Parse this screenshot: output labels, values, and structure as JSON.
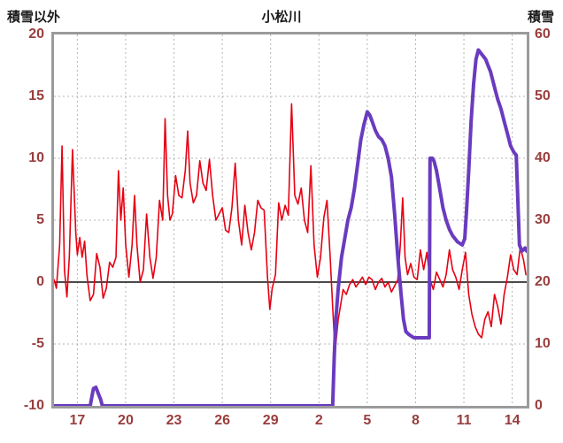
{
  "chart_data": {
    "type": "line",
    "title": "小松川",
    "grid": true,
    "legend": "none",
    "colors": {
      "grid": "#b4b4b4",
      "zero_line": "#4a4a4a",
      "frame": "#9b9b9b",
      "tick_text": "#993d3d",
      "header_text": "#1a1a1a",
      "background": "#ffffff"
    },
    "left_axis": {
      "label": "積雪以外",
      "min": -10,
      "max": 20,
      "ticks": [
        20,
        15,
        10,
        5,
        0,
        -5,
        -10
      ]
    },
    "right_axis": {
      "label": "積雪",
      "min": 0,
      "max": 60,
      "ticks": [
        60,
        50,
        40,
        30,
        20,
        10,
        0
      ]
    },
    "x_axis": {
      "min": 15.55,
      "max": 44.9,
      "tick_positions": [
        17,
        20,
        23,
        26,
        29,
        32,
        35,
        38,
        41,
        44
      ],
      "tick_labels": [
        "17",
        "20",
        "23",
        "26",
        "29",
        "2",
        "5",
        "8",
        "11",
        "14"
      ]
    },
    "series": [
      {
        "key": "temperature-line",
        "name": "積雪以外",
        "axis": "left",
        "color": "#e60012",
        "width": 1.6,
        "points": [
          [
            15.55,
            0.2
          ],
          [
            15.7,
            -0.5
          ],
          [
            15.9,
            3.0
          ],
          [
            16.05,
            11.0
          ],
          [
            16.2,
            1.0
          ],
          [
            16.35,
            -1.2
          ],
          [
            16.5,
            2.0
          ],
          [
            16.7,
            10.7
          ],
          [
            16.9,
            4.0
          ],
          [
            17.0,
            2.2
          ],
          [
            17.15,
            3.6
          ],
          [
            17.3,
            2.0
          ],
          [
            17.45,
            3.3
          ],
          [
            17.6,
            0.5
          ],
          [
            17.8,
            -1.5
          ],
          [
            18.0,
            -1.0
          ],
          [
            18.2,
            2.3
          ],
          [
            18.4,
            1.2
          ],
          [
            18.6,
            -1.3
          ],
          [
            18.8,
            -0.5
          ],
          [
            19.0,
            1.6
          ],
          [
            19.2,
            1.2
          ],
          [
            19.4,
            2.0
          ],
          [
            19.55,
            9.0
          ],
          [
            19.7,
            5.0
          ],
          [
            19.85,
            7.6
          ],
          [
            20.0,
            3.0
          ],
          [
            20.2,
            0.4
          ],
          [
            20.4,
            3.0
          ],
          [
            20.55,
            7.0
          ],
          [
            20.7,
            3.0
          ],
          [
            20.9,
            0.0
          ],
          [
            21.1,
            1.0
          ],
          [
            21.3,
            5.5
          ],
          [
            21.5,
            2.0
          ],
          [
            21.7,
            0.3
          ],
          [
            21.9,
            2.0
          ],
          [
            22.1,
            6.6
          ],
          [
            22.3,
            5.0
          ],
          [
            22.45,
            13.2
          ],
          [
            22.6,
            7.0
          ],
          [
            22.75,
            5.0
          ],
          [
            22.9,
            5.5
          ],
          [
            23.1,
            8.6
          ],
          [
            23.3,
            7.0
          ],
          [
            23.5,
            6.8
          ],
          [
            23.7,
            9.0
          ],
          [
            23.85,
            12.2
          ],
          [
            24.0,
            8.0
          ],
          [
            24.2,
            6.4
          ],
          [
            24.4,
            7.0
          ],
          [
            24.6,
            9.8
          ],
          [
            24.8,
            8.0
          ],
          [
            25.0,
            7.4
          ],
          [
            25.2,
            9.9
          ],
          [
            25.4,
            7.0
          ],
          [
            25.6,
            5.0
          ],
          [
            25.8,
            5.5
          ],
          [
            26.0,
            6.0
          ],
          [
            26.2,
            4.2
          ],
          [
            26.4,
            4.0
          ],
          [
            26.6,
            6.0
          ],
          [
            26.8,
            9.6
          ],
          [
            27.0,
            5.0
          ],
          [
            27.2,
            3.0
          ],
          [
            27.4,
            6.2
          ],
          [
            27.6,
            4.0
          ],
          [
            27.8,
            2.6
          ],
          [
            28.0,
            4.0
          ],
          [
            28.2,
            6.6
          ],
          [
            28.4,
            6.0
          ],
          [
            28.6,
            5.8
          ],
          [
            28.8,
            0.5
          ],
          [
            28.95,
            -2.2
          ],
          [
            29.1,
            -0.5
          ],
          [
            29.3,
            0.6
          ],
          [
            29.5,
            6.4
          ],
          [
            29.7,
            5.0
          ],
          [
            29.9,
            6.2
          ],
          [
            30.1,
            5.4
          ],
          [
            30.3,
            14.4
          ],
          [
            30.5,
            7.0
          ],
          [
            30.7,
            6.3
          ],
          [
            30.9,
            7.6
          ],
          [
            31.1,
            5.0
          ],
          [
            31.3,
            4.0
          ],
          [
            31.5,
            9.4
          ],
          [
            31.7,
            3.0
          ],
          [
            31.9,
            0.4
          ],
          [
            32.1,
            2.0
          ],
          [
            32.3,
            5.2
          ],
          [
            32.5,
            6.6
          ],
          [
            32.7,
            2.0
          ],
          [
            32.85,
            -2.0
          ],
          [
            33.0,
            -5.6
          ],
          [
            33.2,
            -3.0
          ],
          [
            33.35,
            -1.8
          ],
          [
            33.5,
            -0.6
          ],
          [
            33.7,
            -1.0
          ],
          [
            33.9,
            -0.2
          ],
          [
            34.1,
            0.2
          ],
          [
            34.3,
            -0.4
          ],
          [
            34.5,
            0.0
          ],
          [
            34.7,
            0.4
          ],
          [
            34.9,
            -0.2
          ],
          [
            35.1,
            0.4
          ],
          [
            35.3,
            0.2
          ],
          [
            35.5,
            -0.6
          ],
          [
            35.7,
            0.0
          ],
          [
            35.9,
            0.3
          ],
          [
            36.1,
            -0.4
          ],
          [
            36.3,
            0.0
          ],
          [
            36.5,
            -0.8
          ],
          [
            36.7,
            -0.3
          ],
          [
            36.9,
            0.2
          ],
          [
            37.05,
            3.0
          ],
          [
            37.2,
            6.8
          ],
          [
            37.35,
            2.0
          ],
          [
            37.5,
            0.6
          ],
          [
            37.7,
            1.5
          ],
          [
            37.9,
            0.4
          ],
          [
            38.1,
            0.2
          ],
          [
            38.3,
            2.6
          ],
          [
            38.5,
            1.0
          ],
          [
            38.7,
            2.4
          ],
          [
            38.9,
            0.2
          ],
          [
            39.1,
            -0.6
          ],
          [
            39.3,
            0.8
          ],
          [
            39.5,
            0.2
          ],
          [
            39.7,
            -0.4
          ],
          [
            39.9,
            0.6
          ],
          [
            40.1,
            2.6
          ],
          [
            40.3,
            1.0
          ],
          [
            40.5,
            0.4
          ],
          [
            40.7,
            -0.6
          ],
          [
            40.9,
            1.0
          ],
          [
            41.1,
            2.4
          ],
          [
            41.3,
            -1.0
          ],
          [
            41.5,
            -2.6
          ],
          [
            41.7,
            -3.6
          ],
          [
            41.9,
            -4.2
          ],
          [
            42.1,
            -4.5
          ],
          [
            42.3,
            -3.0
          ],
          [
            42.5,
            -2.4
          ],
          [
            42.7,
            -3.6
          ],
          [
            42.9,
            -1.0
          ],
          [
            43.1,
            -2.0
          ],
          [
            43.3,
            -3.4
          ],
          [
            43.5,
            -1.0
          ],
          [
            43.7,
            0.4
          ],
          [
            43.9,
            2.2
          ],
          [
            44.1,
            1.0
          ],
          [
            44.3,
            0.6
          ],
          [
            44.5,
            2.8
          ],
          [
            44.7,
            1.8
          ],
          [
            44.85,
            0.6
          ]
        ]
      },
      {
        "key": "snow-depth-line",
        "name": "積雪",
        "axis": "right",
        "color": "#6a3bbf",
        "width": 4,
        "points": [
          [
            15.55,
            0
          ],
          [
            17.8,
            0
          ],
          [
            17.9,
            1.5
          ],
          [
            18.0,
            2.8
          ],
          [
            18.15,
            3.0
          ],
          [
            18.3,
            2.0
          ],
          [
            18.45,
            1.0
          ],
          [
            18.55,
            0
          ],
          [
            32.85,
            0
          ],
          [
            32.95,
            8
          ],
          [
            33.05,
            14
          ],
          [
            33.2,
            19
          ],
          [
            33.4,
            24
          ],
          [
            33.6,
            27
          ],
          [
            33.8,
            30
          ],
          [
            34.0,
            32
          ],
          [
            34.2,
            35
          ],
          [
            34.4,
            39
          ],
          [
            34.6,
            43
          ],
          [
            34.8,
            45.5
          ],
          [
            35.0,
            47.5
          ],
          [
            35.15,
            47
          ],
          [
            35.3,
            46
          ],
          [
            35.5,
            44.5
          ],
          [
            35.7,
            43.5
          ],
          [
            35.9,
            43
          ],
          [
            36.1,
            42
          ],
          [
            36.3,
            40
          ],
          [
            36.5,
            37
          ],
          [
            36.7,
            31
          ],
          [
            36.9,
            24
          ],
          [
            37.1,
            18
          ],
          [
            37.25,
            14
          ],
          [
            37.4,
            12
          ],
          [
            37.6,
            11.5
          ],
          [
            37.9,
            11
          ],
          [
            38.2,
            11
          ],
          [
            38.5,
            11
          ],
          [
            38.85,
            11
          ],
          [
            38.9,
            40
          ],
          [
            39.05,
            40
          ],
          [
            39.15,
            39.5
          ],
          [
            39.3,
            38
          ],
          [
            39.5,
            35
          ],
          [
            39.7,
            32
          ],
          [
            39.9,
            30
          ],
          [
            40.1,
            28.5
          ],
          [
            40.3,
            27.5
          ],
          [
            40.6,
            26.5
          ],
          [
            40.9,
            26
          ],
          [
            41.05,
            27
          ],
          [
            41.15,
            31
          ],
          [
            41.3,
            38
          ],
          [
            41.45,
            46
          ],
          [
            41.6,
            52
          ],
          [
            41.75,
            56
          ],
          [
            41.9,
            57.5
          ],
          [
            42.05,
            57
          ],
          [
            42.2,
            56.5
          ],
          [
            42.35,
            56
          ],
          [
            42.5,
            55
          ],
          [
            42.65,
            54
          ],
          [
            42.8,
            52.5
          ],
          [
            42.95,
            51
          ],
          [
            43.1,
            49.5
          ],
          [
            43.3,
            48
          ],
          [
            43.5,
            46
          ],
          [
            43.7,
            44
          ],
          [
            43.9,
            42
          ],
          [
            44.1,
            41
          ],
          [
            44.25,
            40.5
          ],
          [
            44.45,
            26
          ],
          [
            44.6,
            25
          ],
          [
            44.8,
            25.5
          ],
          [
            44.9,
            25
          ]
        ]
      }
    ]
  }
}
